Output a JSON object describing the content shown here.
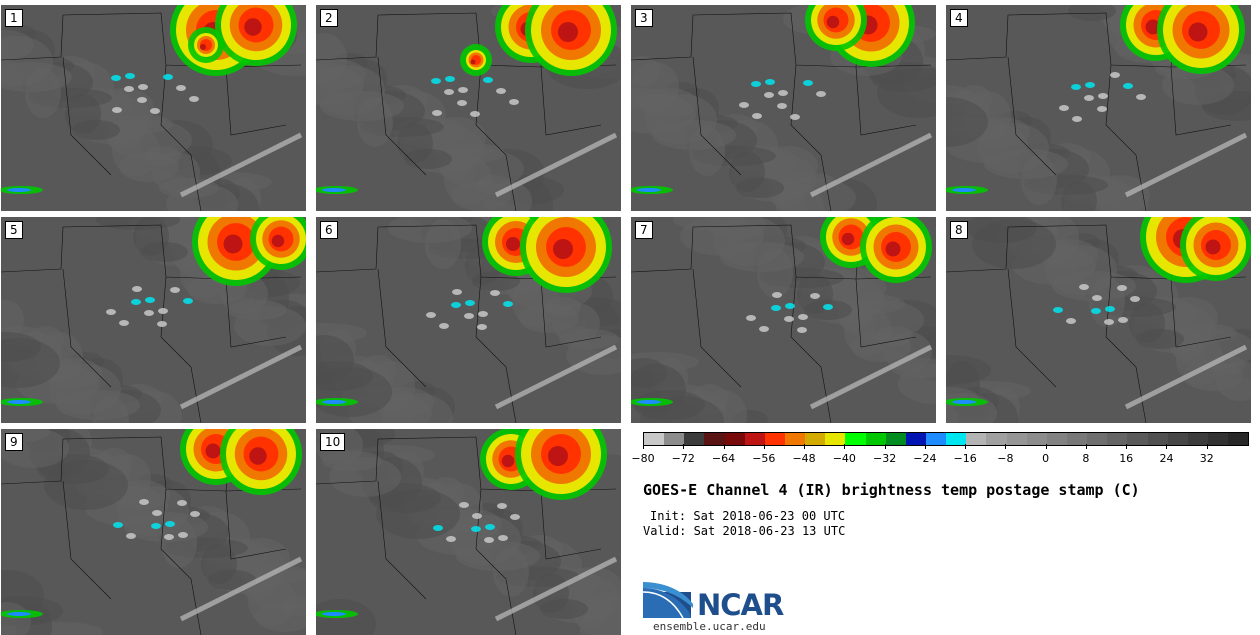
{
  "panels": [
    {
      "label": "1"
    },
    {
      "label": "2"
    },
    {
      "label": "3"
    },
    {
      "label": "4"
    },
    {
      "label": "5"
    },
    {
      "label": "6"
    },
    {
      "label": "7"
    },
    {
      "label": "8"
    },
    {
      "label": "9"
    },
    {
      "label": "10"
    }
  ],
  "colorbar": {
    "colors": [
      "#c8c8c8",
      "#8c8c8c",
      "#3c3c3c",
      "#5a1414",
      "#780a0a",
      "#be1414",
      "#ff3200",
      "#f07800",
      "#d2aa00",
      "#e6e600",
      "#00ff00",
      "#00c800",
      "#008c1e",
      "#0014b4",
      "#1e8cff",
      "#00e6f0",
      "#b4b4b4",
      "#a0a0a0",
      "#969696",
      "#8c8c8c",
      "#828282",
      "#787878",
      "#6e6e6e",
      "#646464",
      "#5a5a5a",
      "#505050",
      "#464646",
      "#3c3c3c",
      "#323232",
      "#282828"
    ],
    "tick_labels": [
      "−80",
      "−72",
      "−64",
      "−56",
      "−48",
      "−40",
      "−32",
      "−24",
      "−16",
      "−8",
      "0",
      "8",
      "16",
      "24",
      "32"
    ],
    "min": -80,
    "max": 40
  },
  "title": "GOES-E Channel 4 (IR) brightness temp postage stamp (C)",
  "init": "Init: Sat 2018-06-23 00 UTC",
  "valid": "Valid: Sat 2018-06-23 13 UTC",
  "logo": {
    "text": "NCAR",
    "colors": [
      "#1f4e8c",
      "#3a8fd0"
    ]
  },
  "website": "ensemble.ucar.edu"
}
